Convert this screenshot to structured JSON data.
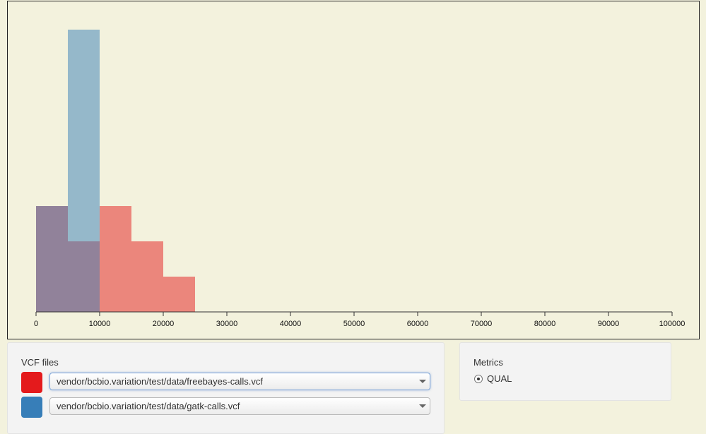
{
  "chart_data": {
    "type": "bar",
    "title": "",
    "xlabel": "",
    "ylabel": "",
    "xlim": [
      0,
      100000
    ],
    "ylim": [
      0,
      8
    ],
    "bin_width": 5000,
    "x_ticks": [
      0,
      10000,
      20000,
      30000,
      40000,
      50000,
      60000,
      70000,
      80000,
      90000,
      100000
    ],
    "bin_starts": [
      0,
      5000,
      10000,
      15000,
      20000
    ],
    "series": [
      {
        "values": [
          3,
          2,
          3,
          2,
          1
        ],
        "color": "#e41a1c"
      },
      {
        "values": [
          3,
          8,
          0,
          0,
          0
        ],
        "color": "#377eb8"
      }
    ],
    "grid": false,
    "legend": "none"
  },
  "vcf_panel": {
    "title": "VCF files",
    "files": [
      {
        "value": "vendor/bcbio.variation/test/data/freebayes-calls.vcf",
        "color": "#e41a1c"
      },
      {
        "value": "vendor/bcbio.variation/test/data/gatk-calls.vcf",
        "color": "#377eb8"
      }
    ]
  },
  "metrics_panel": {
    "title": "Metrics",
    "options": [
      {
        "label": "QUAL",
        "selected": true
      }
    ]
  }
}
